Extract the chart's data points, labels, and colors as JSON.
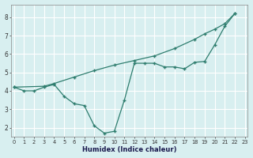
{
  "line_wavy_x": [
    0,
    1,
    2,
    3,
    4,
    5,
    6,
    7,
    8,
    9,
    10,
    11,
    12,
    13,
    14,
    15,
    16,
    17,
    18,
    19,
    20,
    21,
    22
  ],
  "line_wavy_y": [
    4.2,
    4.0,
    4.0,
    4.2,
    4.35,
    3.7,
    3.3,
    3.2,
    2.1,
    1.7,
    1.8,
    3.5,
    5.5,
    5.5,
    5.5,
    5.3,
    5.3,
    5.2,
    5.55,
    5.6,
    6.5,
    7.5,
    8.2
  ],
  "line_diag_x": [
    0,
    3,
    4,
    6,
    8,
    10,
    12,
    14,
    16,
    18,
    19,
    20,
    21,
    22
  ],
  "line_diag_y": [
    4.2,
    4.25,
    4.4,
    4.75,
    5.1,
    5.4,
    5.65,
    5.9,
    6.3,
    6.8,
    7.1,
    7.35,
    7.65,
    8.2
  ],
  "color": "#2e7d6e",
  "bg_color": "#d8eff0",
  "grid_color": "#ffffff",
  "xlabel": "Humidex (Indice chaleur)",
  "ylim": [
    1.5,
    8.7
  ],
  "xlim": [
    -0.3,
    23.3
  ],
  "yticks": [
    2,
    3,
    4,
    5,
    6,
    7,
    8
  ],
  "xticks": [
    0,
    1,
    2,
    3,
    4,
    5,
    6,
    7,
    8,
    9,
    10,
    11,
    12,
    13,
    14,
    15,
    16,
    17,
    18,
    19,
    20,
    21,
    22,
    23
  ]
}
